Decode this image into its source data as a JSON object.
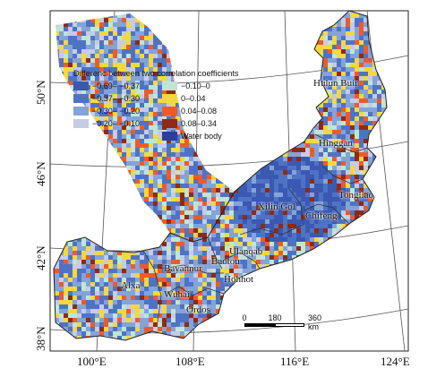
{
  "map": {
    "legend": {
      "title": "Differenc between two correlation coefficients",
      "items": [
        {
          "label": "−0.69– −0.37",
          "color": "#3b58b2"
        },
        {
          "label": "−0.10–0",
          "color": "#bfe6d3"
        },
        {
          "label": "−0.37– −0.30",
          "color": "#4f73c4"
        },
        {
          "label": "0–0.04",
          "color": "#f5d83c"
        },
        {
          "label": "−0.30– −0.20",
          "color": "#84a3d8"
        },
        {
          "label": "0.04–0.08",
          "color": "#ef5a2a"
        },
        {
          "label": "−0.20– −0.10",
          "color": "#c6cbe6"
        },
        {
          "label": "0.08–0.34",
          "color": "#8f2a14"
        },
        {
          "label": "",
          "color": ""
        },
        {
          "label": "Water body",
          "color": "#2e3d9c"
        }
      ]
    },
    "lat_labels": [
      "50°N",
      "46°N",
      "42°N",
      "38°N"
    ],
    "lon_labels": [
      "100°E",
      "108°E",
      "116°E",
      "124°E"
    ],
    "regions": [
      "Hulun Buir",
      "Hinggan",
      "Tongliao",
      "Xilin Gol",
      "Chifeng",
      "Ulanqab",
      "Baotou",
      "Hohhot",
      "Bayannur",
      "Alxa",
      "Wuhai",
      "Ordos"
    ],
    "scale": {
      "ticks": [
        "0",
        "180",
        "360 km"
      ]
    }
  }
}
